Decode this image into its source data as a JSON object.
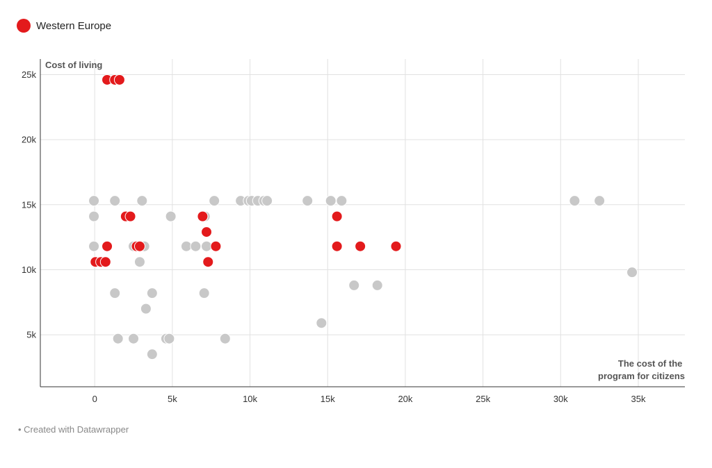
{
  "legend": {
    "label": "Western Europe",
    "color": "#e31a1c"
  },
  "footer": {
    "text": "• Created with Datawrapper"
  },
  "colors": {
    "highlight": "#e31a1c",
    "other": "#c8c8c8",
    "grid": "#e1e1e1",
    "axis": "#333333"
  },
  "chart_data": {
    "type": "scatter",
    "title": "",
    "xlabel": [
      "The cost of the",
      "program for citizens"
    ],
    "ylabel": "Cost of living",
    "xlim": [
      -3500,
      38000
    ],
    "ylim": [
      1000,
      26200
    ],
    "x_ticks": [
      0,
      5000,
      10000,
      15000,
      20000,
      25000,
      30000,
      35000
    ],
    "x_tick_labels": [
      "0",
      "5k",
      "10k",
      "15k",
      "20k",
      "25k",
      "30k",
      "35k"
    ],
    "y_ticks": [
      5000,
      10000,
      15000,
      20000,
      25000
    ],
    "y_tick_labels": [
      "5k",
      "10k",
      "15k",
      "20k",
      "25k"
    ],
    "grid": true,
    "legend_position": "top-left",
    "series": [
      {
        "name": "",
        "color": "#c8c8c8",
        "points": [
          [
            -50,
            15300
          ],
          [
            -50,
            14100
          ],
          [
            -50,
            11800
          ],
          [
            1300,
            15300
          ],
          [
            3050,
            15300
          ],
          [
            4900,
            14100
          ],
          [
            2500,
            11800
          ],
          [
            3200,
            11800
          ],
          [
            2900,
            10600
          ],
          [
            1300,
            8200
          ],
          [
            3700,
            8200
          ],
          [
            3300,
            7000
          ],
          [
            1500,
            4700
          ],
          [
            2500,
            4700
          ],
          [
            4600,
            4700
          ],
          [
            4800,
            4700
          ],
          [
            3700,
            3500
          ],
          [
            5900,
            11800
          ],
          [
            6500,
            11800
          ],
          [
            7200,
            11800
          ],
          [
            7700,
            15300
          ],
          [
            7050,
            8200
          ],
          [
            8400,
            4700
          ],
          [
            9400,
            15300
          ],
          [
            9900,
            15300
          ],
          [
            10100,
            15300
          ],
          [
            10500,
            15300
          ],
          [
            10900,
            15300
          ],
          [
            11100,
            15300
          ],
          [
            13700,
            15300
          ],
          [
            15200,
            15300
          ],
          [
            15900,
            15300
          ],
          [
            14600,
            5900
          ],
          [
            16700,
            8800
          ],
          [
            18200,
            8800
          ],
          [
            30900,
            15300
          ],
          [
            32500,
            15300
          ],
          [
            34600,
            9800
          ],
          [
            7100,
            14100
          ]
        ]
      },
      {
        "name": "Western Europe",
        "color": "#e31a1c",
        "points": [
          [
            800,
            24600
          ],
          [
            1300,
            24600
          ],
          [
            1600,
            24600
          ],
          [
            2000,
            14100
          ],
          [
            2300,
            14100
          ],
          [
            800,
            11800
          ],
          [
            2700,
            11800
          ],
          [
            2900,
            11800
          ],
          [
            50,
            10600
          ],
          [
            400,
            10600
          ],
          [
            700,
            10600
          ],
          [
            6950,
            14100
          ],
          [
            7200,
            12900
          ],
          [
            7800,
            11800
          ],
          [
            7300,
            10600
          ],
          [
            15600,
            14100
          ],
          [
            15600,
            11800
          ],
          [
            17100,
            11800
          ],
          [
            19400,
            11800
          ]
        ]
      }
    ]
  }
}
